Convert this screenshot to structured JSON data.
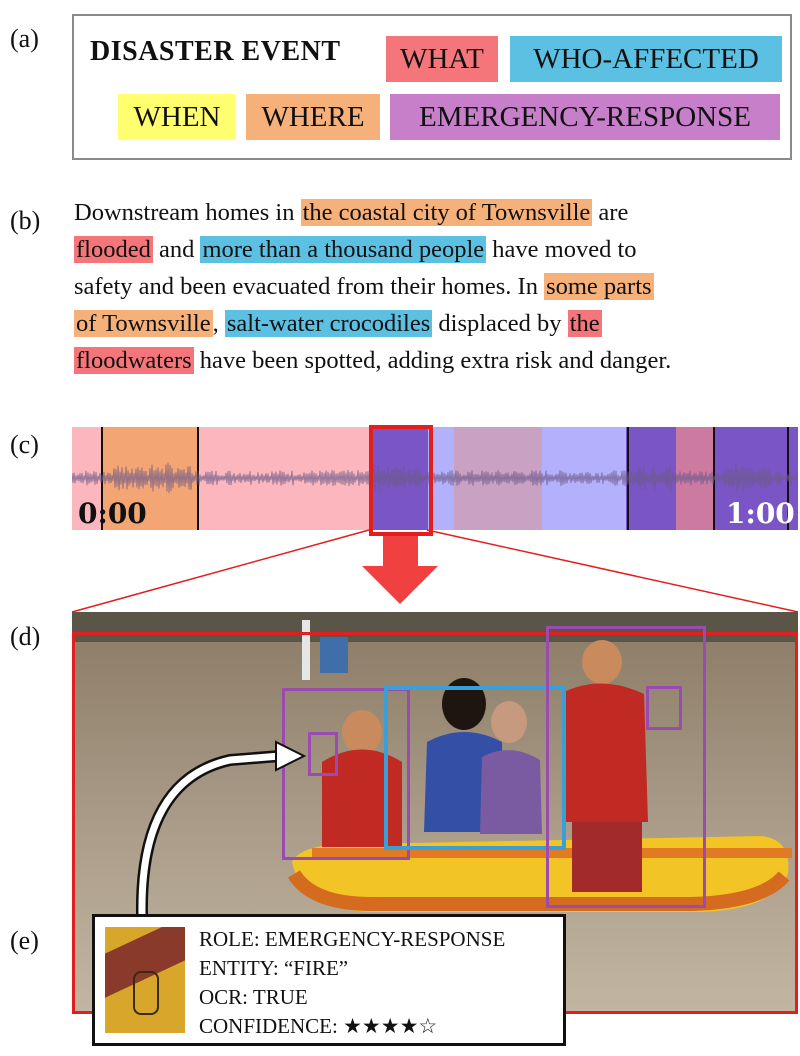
{
  "colors": {
    "what": "#f4767a",
    "who_affected": "#5bc0e2",
    "when": "#ffff70",
    "where": "#f6b17a",
    "emergency_response": "#c67fc8"
  },
  "panels": {
    "a": "(a)",
    "b": "(b)",
    "c": "(c)",
    "d": "(d)",
    "e": "(e)"
  },
  "legend": {
    "title": "DISASTER EVENT",
    "what": "WHAT",
    "who_affected": "WHO-AFFECTED",
    "when": "WHEN",
    "where": "WHERE",
    "emergency_response": "EMERGENCY-RESPONSE"
  },
  "story": {
    "l1_a": "Downstream homes in ",
    "l1_where": "the coastal city of Townsville",
    "l1_b": " are",
    "l2_what": "flooded",
    "l2_a": " and ",
    "l2_who": "more than a thousand people",
    "l2_b": " have moved to",
    "l3_a": "safety and been evacuated from their homes. In ",
    "l3_where": "some parts",
    "l4_where": "of Townsville",
    "l4_a": ", ",
    "l4_who": "salt-water crocodiles",
    "l4_b": " displaced by ",
    "l4_what": "the",
    "l5_what": "floodwaters",
    "l5_a": " have been spotted, adding extra risk and danger."
  },
  "timeline": {
    "start_label": "0:00",
    "end_label": "1:00"
  },
  "callout": {
    "role": "ROLE: EMERGENCY-RESPONSE",
    "entity": "ENTITY: “FIRE”",
    "ocr": "OCR: TRUE",
    "confidence": "CONFIDENCE: ★★★★☆"
  }
}
